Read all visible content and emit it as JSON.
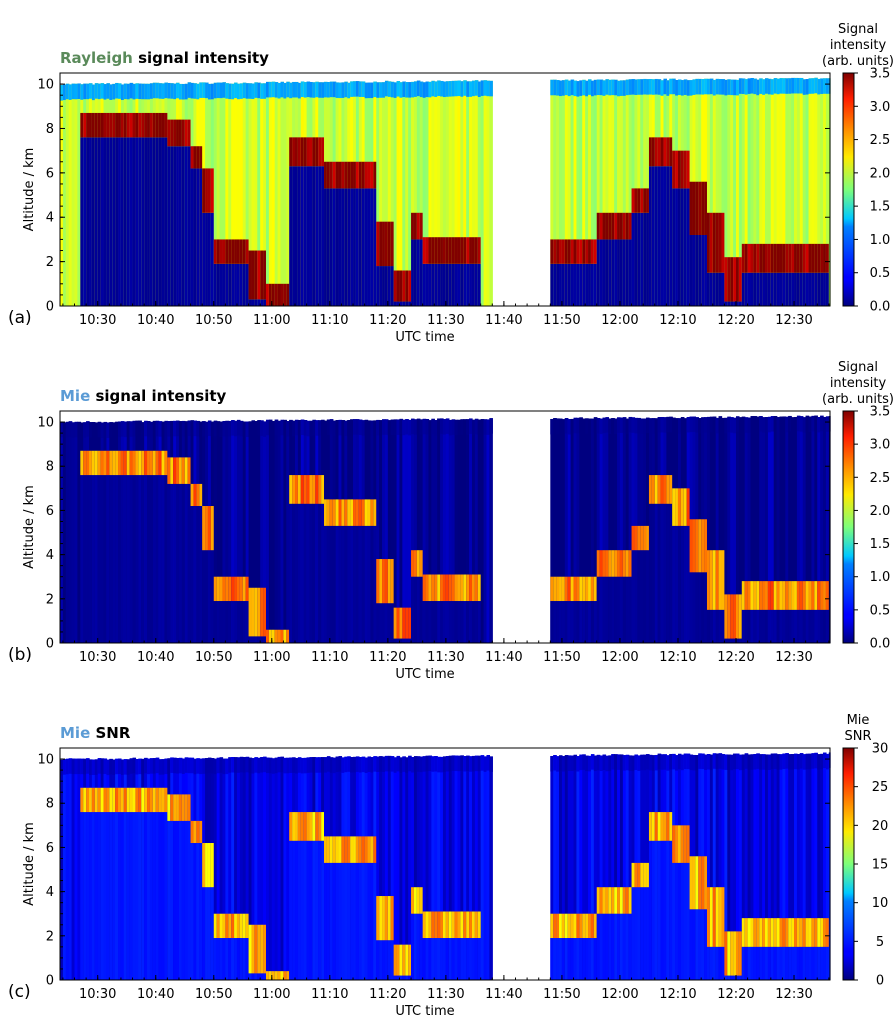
{
  "chart_data": [
    {
      "type": "heatmap",
      "panel_label": "(a)",
      "title_prefix": "Rayleigh",
      "title_prefix_color": "#5a8a5a",
      "title_rest": "signal intensity",
      "xlabel": "UTC time",
      "ylabel": "Altitude / km",
      "x_ticks": [
        "10:30",
        "10:40",
        "10:50",
        "11:00",
        "11:10",
        "11:20",
        "11:30",
        "11:40",
        "11:50",
        "12:00",
        "12:10",
        "12:20",
        "12:30"
      ],
      "x_range_min": [
        625,
        696
      ],
      "gap_min": [
        698,
        708
      ],
      "y_ticks": [
        0,
        2,
        4,
        6,
        8,
        10
      ],
      "ylim": [
        0,
        10.5
      ],
      "colorbar_title": [
        "Signal",
        "intensity",
        "(arb. units)"
      ],
      "colorbar_ticks": [
        "0.0",
        "0.5",
        "1.0",
        "1.5",
        "2.0",
        "2.5",
        "3.0",
        "3.5"
      ],
      "colorbar_range": [
        0,
        3.5
      ],
      "background_value": 2.0,
      "top_band_value": 1.0,
      "cloud_value": 3.5,
      "below_cloud_value": 0.05,
      "cloud_layers": [
        {
          "t": [
            627,
            642
          ],
          "base": 7.6,
          "top": 8.7
        },
        {
          "t": [
            642,
            646
          ],
          "base": 7.2,
          "top": 8.4
        },
        {
          "t": [
            646,
            648
          ],
          "base": 6.2,
          "top": 7.2
        },
        {
          "t": [
            648,
            650
          ],
          "base": 4.2,
          "top": 6.2
        },
        {
          "t": [
            650,
            656
          ],
          "base": 1.9,
          "top": 3.0
        },
        {
          "t": [
            656,
            659
          ],
          "base": 0.3,
          "top": 2.5
        },
        {
          "t": [
            659,
            663
          ],
          "base": 0.0,
          "top": 1.0
        },
        {
          "t": [
            663,
            669
          ],
          "base": 6.3,
          "top": 7.6
        },
        {
          "t": [
            669,
            678
          ],
          "base": 5.3,
          "top": 6.5
        },
        {
          "t": [
            678,
            681
          ],
          "base": 1.8,
          "top": 3.8
        },
        {
          "t": [
            681,
            684
          ],
          "base": 0.2,
          "top": 1.6
        },
        {
          "t": [
            684,
            686
          ],
          "base": 3.0,
          "top": 4.2
        },
        {
          "t": [
            686,
            696
          ],
          "base": 1.9,
          "top": 3.1
        },
        {
          "t": [
            708,
            716
          ],
          "base": 1.9,
          "top": 3.0
        },
        {
          "t": [
            716,
            722
          ],
          "base": 3.0,
          "top": 4.2
        },
        {
          "t": [
            722,
            725
          ],
          "base": 4.2,
          "top": 5.3
        },
        {
          "t": [
            725,
            729
          ],
          "base": 6.3,
          "top": 7.6
        },
        {
          "t": [
            729,
            732
          ],
          "base": 5.3,
          "top": 7.0
        },
        {
          "t": [
            732,
            735
          ],
          "base": 3.2,
          "top": 5.6
        },
        {
          "t": [
            735,
            738
          ],
          "base": 1.5,
          "top": 4.2
        },
        {
          "t": [
            738,
            741
          ],
          "base": 0.2,
          "top": 2.2
        },
        {
          "t": [
            741,
            756
          ],
          "base": 1.5,
          "top": 2.8
        }
      ]
    },
    {
      "type": "heatmap",
      "panel_label": "(b)",
      "title_prefix": "Mie",
      "title_prefix_color": "#5b9bd5",
      "title_rest": "signal intensity",
      "xlabel": "UTC time",
      "ylabel": "Altitude / km",
      "x_ticks": [
        "10:30",
        "10:40",
        "10:50",
        "11:00",
        "11:10",
        "11:20",
        "11:30",
        "11:40",
        "11:50",
        "12:00",
        "12:10",
        "12:20",
        "12:30"
      ],
      "x_range_min": [
        625,
        696
      ],
      "gap_min": [
        698,
        708
      ],
      "y_ticks": [
        0,
        2,
        4,
        6,
        8,
        10
      ],
      "ylim": [
        0,
        10.5
      ],
      "colorbar_title": [
        "Signal",
        "intensity",
        "(arb. units)"
      ],
      "colorbar_ticks": [
        "0.0",
        "0.5",
        "1.0",
        "1.5",
        "2.0",
        "2.5",
        "3.0",
        "3.5"
      ],
      "colorbar_range": [
        0,
        3.5
      ],
      "background_value": 0.05,
      "top_band_value": 0.05,
      "cloud_value": 2.6,
      "below_cloud_value": 0.05,
      "cloud_layers": [
        {
          "t": [
            627,
            642
          ],
          "base": 7.6,
          "top": 8.7
        },
        {
          "t": [
            642,
            646
          ],
          "base": 7.2,
          "top": 8.4
        },
        {
          "t": [
            646,
            648
          ],
          "base": 6.2,
          "top": 7.2
        },
        {
          "t": [
            648,
            650
          ],
          "base": 4.2,
          "top": 6.2
        },
        {
          "t": [
            650,
            656
          ],
          "base": 1.9,
          "top": 3.0
        },
        {
          "t": [
            656,
            659
          ],
          "base": 0.3,
          "top": 2.5
        },
        {
          "t": [
            659,
            663
          ],
          "base": 0.0,
          "top": 0.6
        },
        {
          "t": [
            663,
            669
          ],
          "base": 6.3,
          "top": 7.6
        },
        {
          "t": [
            669,
            678
          ],
          "base": 5.3,
          "top": 6.5
        },
        {
          "t": [
            678,
            681
          ],
          "base": 1.8,
          "top": 3.8
        },
        {
          "t": [
            681,
            684
          ],
          "base": 0.2,
          "top": 1.6
        },
        {
          "t": [
            684,
            686
          ],
          "base": 3.0,
          "top": 4.2
        },
        {
          "t": [
            686,
            696
          ],
          "base": 1.9,
          "top": 3.1
        },
        {
          "t": [
            708,
            716
          ],
          "base": 1.9,
          "top": 3.0
        },
        {
          "t": [
            716,
            722
          ],
          "base": 3.0,
          "top": 4.2
        },
        {
          "t": [
            722,
            725
          ],
          "base": 4.2,
          "top": 5.3
        },
        {
          "t": [
            725,
            729
          ],
          "base": 6.3,
          "top": 7.6
        },
        {
          "t": [
            729,
            732
          ],
          "base": 5.3,
          "top": 7.0
        },
        {
          "t": [
            732,
            735
          ],
          "base": 3.2,
          "top": 5.6
        },
        {
          "t": [
            735,
            738
          ],
          "base": 1.5,
          "top": 4.2
        },
        {
          "t": [
            738,
            741
          ],
          "base": 0.2,
          "top": 2.2
        },
        {
          "t": [
            741,
            756
          ],
          "base": 1.5,
          "top": 2.8
        }
      ]
    },
    {
      "type": "heatmap",
      "panel_label": "(c)",
      "title_prefix": "Mie",
      "title_prefix_color": "#5b9bd5",
      "title_rest": "SNR",
      "xlabel": "UTC time",
      "ylabel": "Altitude / km",
      "x_ticks": [
        "10:30",
        "10:40",
        "10:50",
        "11:00",
        "11:10",
        "11:20",
        "11:30",
        "11:40",
        "11:50",
        "12:00",
        "12:10",
        "12:20",
        "12:30"
      ],
      "x_range_min": [
        625,
        696
      ],
      "gap_min": [
        698,
        708
      ],
      "y_ticks": [
        0,
        2,
        4,
        6,
        8,
        10
      ],
      "ylim": [
        0,
        10.5
      ],
      "colorbar_title": [
        "Mie",
        "SNR"
      ],
      "colorbar_ticks": [
        "0",
        "5",
        "10",
        "15",
        "20",
        "25",
        "30"
      ],
      "colorbar_range": [
        0,
        30
      ],
      "background_value": 3,
      "top_band_value": 2,
      "cloud_value": 21,
      "below_cloud_value": 4,
      "cloud_layers": [
        {
          "t": [
            627,
            642
          ],
          "base": 7.6,
          "top": 8.7
        },
        {
          "t": [
            642,
            646
          ],
          "base": 7.2,
          "top": 8.4
        },
        {
          "t": [
            646,
            648
          ],
          "base": 6.2,
          "top": 7.2
        },
        {
          "t": [
            648,
            650
          ],
          "base": 4.2,
          "top": 6.2
        },
        {
          "t": [
            650,
            656
          ],
          "base": 1.9,
          "top": 3.0
        },
        {
          "t": [
            656,
            659
          ],
          "base": 0.3,
          "top": 2.5
        },
        {
          "t": [
            659,
            663
          ],
          "base": 0.0,
          "top": 0.4
        },
        {
          "t": [
            663,
            669
          ],
          "base": 6.3,
          "top": 7.6
        },
        {
          "t": [
            669,
            678
          ],
          "base": 5.3,
          "top": 6.5
        },
        {
          "t": [
            678,
            681
          ],
          "base": 1.8,
          "top": 3.8
        },
        {
          "t": [
            681,
            684
          ],
          "base": 0.2,
          "top": 1.6
        },
        {
          "t": [
            684,
            686
          ],
          "base": 3.0,
          "top": 4.2
        },
        {
          "t": [
            686,
            696
          ],
          "base": 1.9,
          "top": 3.1
        },
        {
          "t": [
            708,
            716
          ],
          "base": 1.9,
          "top": 3.0
        },
        {
          "t": [
            716,
            722
          ],
          "base": 3.0,
          "top": 4.2
        },
        {
          "t": [
            722,
            725
          ],
          "base": 4.2,
          "top": 5.3
        },
        {
          "t": [
            725,
            729
          ],
          "base": 6.3,
          "top": 7.6
        },
        {
          "t": [
            729,
            732
          ],
          "base": 5.3,
          "top": 7.0
        },
        {
          "t": [
            732,
            735
          ],
          "base": 3.2,
          "top": 5.6
        },
        {
          "t": [
            735,
            738
          ],
          "base": 1.5,
          "top": 4.2
        },
        {
          "t": [
            738,
            741
          ],
          "base": 0.2,
          "top": 2.2
        },
        {
          "t": [
            741,
            756
          ],
          "base": 1.5,
          "top": 2.8
        }
      ]
    }
  ]
}
